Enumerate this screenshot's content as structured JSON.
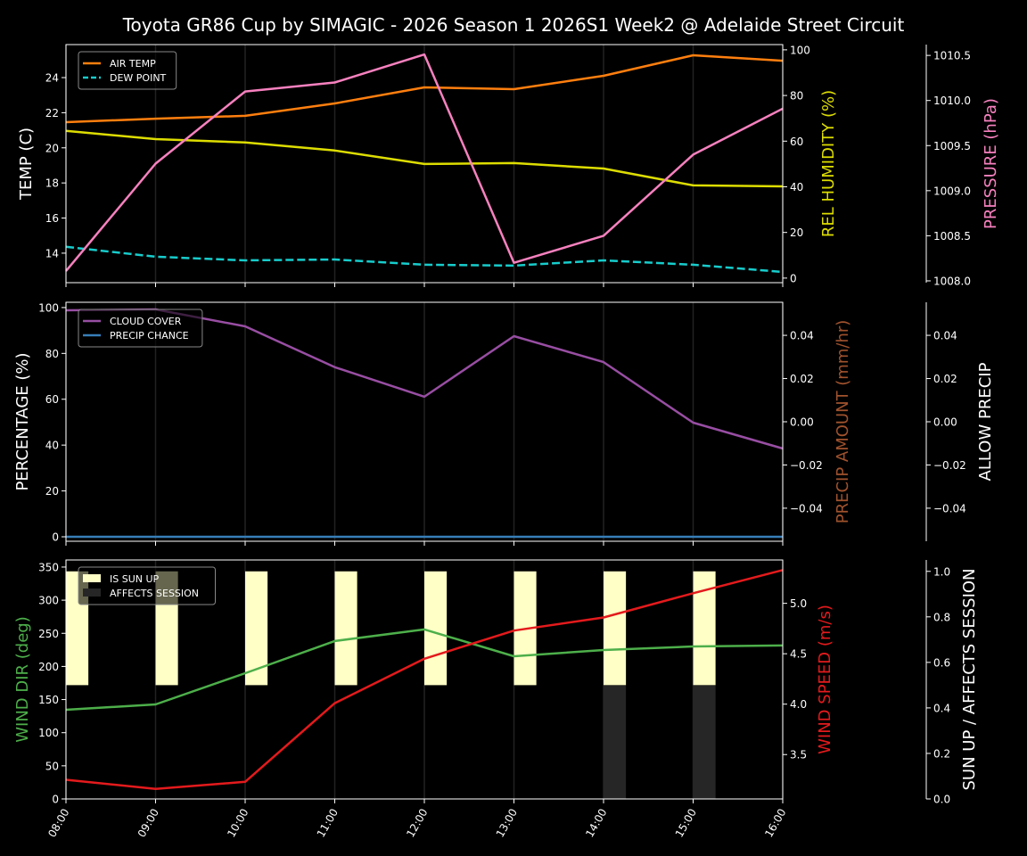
{
  "chart_data": {
    "type": "line",
    "title": "Toyota GR86 Cup by SIMAGIC - 2026 Season 1 2026S1 Week2 @ Adelaide Street Circuit",
    "x": [
      "08:00",
      "09:00",
      "10:00",
      "11:00",
      "12:00",
      "13:00",
      "14:00",
      "15:00",
      "16:00"
    ],
    "grid": "vertical",
    "panels": [
      {
        "axes": {
          "left": {
            "label": "TEMP (C)",
            "color": "#ffffff",
            "ylim": [
              12.32,
              25.88
            ],
            "ticks": [
              14,
              16,
              18,
              20,
              22,
              24
            ],
            "tick_labels": [
              "14",
              "16",
              "18",
              "20",
              "22",
              "24"
            ]
          },
          "right": {
            "label": "REL HUMIDITY (%)",
            "color": "#dddd00",
            "ylim": [
              -2.0,
              102.3
            ],
            "ticks": [
              0,
              20,
              40,
              60,
              80,
              100
            ],
            "tick_labels": [
              "0",
              "20",
              "40",
              "60",
              "80",
              "100"
            ]
          },
          "right2": {
            "label": "PRESSURE (hPa)",
            "color": "#f781bf",
            "ylim": [
              1007.98,
              1010.62
            ],
            "ticks": [
              1008.0,
              1008.5,
              1009.0,
              1009.5,
              1010.0,
              1010.5
            ],
            "tick_labels": [
              "1008.0",
              "1008.5",
              "1009.0",
              "1009.5",
              "1010.0",
              "1010.5"
            ]
          }
        },
        "series": [
          {
            "name": "AIR TEMP",
            "axis": "left",
            "color": "#ff7f0e",
            "dash": false,
            "values": [
              21.46,
              21.66,
              21.82,
              22.53,
              23.44,
              23.34,
              24.1,
              25.27,
              24.96
            ]
          },
          {
            "name": "DEW POINT",
            "axis": "left",
            "color": "#17cccc",
            "dash": true,
            "values": [
              14.36,
              13.8,
              13.59,
              13.64,
              13.34,
              13.29,
              13.59,
              13.34,
              12.93
            ]
          },
          {
            "name": "REL HUMIDITY",
            "axis": "right",
            "color": "#dddd00",
            "dash": false,
            "values": [
              64.5,
              60.9,
              59.4,
              55.9,
              50.0,
              50.4,
              48.0,
              40.6,
              40.2
            ]
          },
          {
            "name": "PRESSURE",
            "axis": "right2",
            "color": "#f781bf",
            "dash": false,
            "values": [
              1008.11,
              1009.3,
              1010.1,
              1010.2,
              1010.51,
              1008.2,
              1008.5,
              1009.4,
              1009.91
            ]
          }
        ],
        "legend": [
          {
            "label": "AIR TEMP",
            "color": "#ff7f0e",
            "kind": "line"
          },
          {
            "label": "DEW POINT",
            "color": "#17cccc",
            "kind": "dash"
          }
        ]
      },
      {
        "axes": {
          "left": {
            "label": "PERCENTAGE (%)",
            "color": "#ffffff",
            "ylim": [
              -1.95,
              102.3
            ],
            "ticks": [
              0,
              20,
              40,
              60,
              80,
              100
            ],
            "tick_labels": [
              "0",
              "20",
              "40",
              "60",
              "80",
              "100"
            ]
          },
          "right": {
            "label": "PRECIP AMOUNT (mm/hr)",
            "color": "#a0522d",
            "ylim": [
              -0.0553,
              0.0553
            ],
            "ticks": [
              -0.04,
              -0.02,
              0,
              0.02,
              0.04
            ],
            "tick_labels": [
              "−0.04",
              "−0.02",
              "0.00",
              "0.02",
              "0.04"
            ]
          },
          "right2": {
            "label": "ALLOW PRECIP",
            "color": "#ffffff",
            "ylim": [
              -0.0553,
              0.0553
            ],
            "ticks": [
              -0.04,
              -0.02,
              0,
              0.02,
              0.04
            ],
            "tick_labels": [
              "−0.04",
              "−0.02",
              "0.00",
              "0.02",
              "0.04"
            ]
          }
        },
        "series": [
          {
            "name": "CLOUD COVER",
            "axis": "left",
            "color": "#984ea3",
            "dash": false,
            "values": [
              98.8,
              99.2,
              91.8,
              74.0,
              61.1,
              87.5,
              76.2,
              49.8,
              38.5
            ]
          },
          {
            "name": "PRECIP CHANCE",
            "axis": "left",
            "color": "#377eb8",
            "dash": false,
            "values": [
              0,
              0,
              0,
              0,
              0,
              0,
              0,
              0,
              0
            ]
          }
        ],
        "legend": [
          {
            "label": "CLOUD COVER",
            "color": "#984ea3",
            "kind": "line"
          },
          {
            "label": "PRECIP CHANCE",
            "color": "#377eb8",
            "kind": "line"
          }
        ]
      },
      {
        "axes": {
          "left": {
            "label": "WIND DIR (deg)",
            "color": "#4daf4a",
            "ylim": [
              0,
              360.7
            ],
            "ticks": [
              0,
              50,
              100,
              150,
              200,
              250,
              300,
              350
            ],
            "tick_labels": [
              "0",
              "50",
              "100",
              "150",
              "200",
              "250",
              "300",
              "350"
            ]
          },
          "right": {
            "label": "WIND SPEED (m/s)",
            "color": "#e41a1c",
            "ylim": [
              3.06,
              5.43
            ],
            "ticks": [
              3.5,
              4.0,
              4.5,
              5.0
            ],
            "tick_labels": [
              "3.5",
              "4.0",
              "4.5",
              "5.0"
            ]
          },
          "right2": {
            "label": "SUN UP / AFFECTS SESSION",
            "color": "#ffffff",
            "ylim": [
              0,
              1.05
            ],
            "ticks": [
              0,
              0.2,
              0.4,
              0.6,
              0.8,
              1.0
            ],
            "tick_labels": [
              "0.0",
              "0.2",
              "0.4",
              "0.6",
              "0.8",
              "1.0"
            ]
          }
        },
        "bars": {
          "axis": "right2",
          "is_sun_up": [
            1,
            1,
            1,
            1,
            1,
            1,
            1,
            1,
            0
          ],
          "affects_session": [
            0,
            0,
            0,
            0,
            0,
            0,
            1,
            1,
            0
          ],
          "sun_color": "#ffffc6",
          "session_color": "#262626"
        },
        "series": [
          {
            "name": "WIND DIR",
            "axis": "left",
            "color": "#4daf4a",
            "dash": false,
            "values": [
              134.6,
              142.7,
              189.8,
              238.3,
              255.8,
              215.4,
              224.8,
              230.2,
              231.6
            ]
          },
          {
            "name": "WIND SPEED",
            "axis": "right",
            "color": "#e41a1c",
            "dash": false,
            "values": [
              3.25,
              3.16,
              3.23,
              4.01,
              4.45,
              4.73,
              4.86,
              5.1,
              5.33
            ]
          }
        ],
        "legend": [
          {
            "label": "IS SUN UP",
            "color": "#ffffc6",
            "kind": "patch"
          },
          {
            "label": "AFFECTS SESSION",
            "color": "#262626",
            "kind": "patch"
          }
        ]
      }
    ]
  }
}
